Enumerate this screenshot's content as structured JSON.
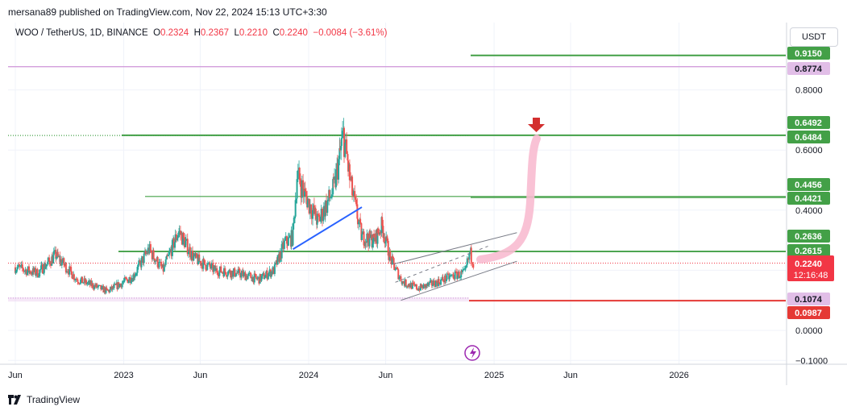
{
  "header": {
    "publisher": "mersana89 published on TradingView.com, Nov 22, 2024 15:13 UTC+3:30"
  },
  "legend": {
    "symbol": "WOO / TetherUS, 1D, BINANCE",
    "o_label": "O",
    "o": "0.2324",
    "h_label": "H",
    "h": "0.2367",
    "l_label": "L",
    "l": "0.2210",
    "c_label": "C",
    "c": "0.2240",
    "change": "−0.0084 (−3.61%)"
  },
  "currency_button": "USDT",
  "footer": {
    "brand": "TradingView"
  },
  "colors": {
    "up": "#26a69a",
    "down": "#ef5350",
    "green_line": "#43a047",
    "pink_line": "#ce93d8",
    "red_line": "#e53935",
    "blue_line": "#2962ff",
    "price_tag": "#f23645",
    "purple_icon": "#9c27b0"
  },
  "chart_data": {
    "type": "candlestick",
    "title": "WOO / TetherUS, 1D, BINANCE",
    "ylim": [
      -0.1,
      1.0
    ],
    "y_ticks": [
      "0.8000",
      "0.6000",
      "0.4000",
      "0.0000",
      "−0.1000"
    ],
    "x_ticks": [
      "Jun",
      "2023",
      "Jun",
      "2024",
      "Jun",
      "2025",
      "Jun",
      "2026"
    ],
    "price_series": [
      {
        "date": "2022-06-01",
        "close": 0.21
      },
      {
        "date": "2022-07-15",
        "close": 0.19
      },
      {
        "date": "2022-08-20",
        "close": 0.25
      },
      {
        "date": "2022-10-01",
        "close": 0.17
      },
      {
        "date": "2022-12-01",
        "close": 0.13
      },
      {
        "date": "2023-01-20",
        "close": 0.18
      },
      {
        "date": "2023-02-20",
        "close": 0.27
      },
      {
        "date": "2023-03-20",
        "close": 0.2
      },
      {
        "date": "2023-04-20",
        "close": 0.33
      },
      {
        "date": "2023-05-20",
        "close": 0.24
      },
      {
        "date": "2023-07-01",
        "close": 0.2
      },
      {
        "date": "2023-08-15",
        "close": 0.19
      },
      {
        "date": "2023-09-25",
        "close": 0.17
      },
      {
        "date": "2023-10-25",
        "close": 0.2
      },
      {
        "date": "2023-11-15",
        "close": 0.29
      },
      {
        "date": "2023-12-01",
        "close": 0.31
      },
      {
        "date": "2023-12-10",
        "close": 0.52
      },
      {
        "date": "2023-12-25",
        "close": 0.45
      },
      {
        "date": "2024-01-20",
        "close": 0.36
      },
      {
        "date": "2024-02-20",
        "close": 0.47
      },
      {
        "date": "2024-03-10",
        "close": 0.65
      },
      {
        "date": "2024-03-25",
        "close": 0.48
      },
      {
        "date": "2024-04-15",
        "close": 0.31
      },
      {
        "date": "2024-05-10",
        "close": 0.3
      },
      {
        "date": "2024-05-25",
        "close": 0.35
      },
      {
        "date": "2024-06-10",
        "close": 0.24
      },
      {
        "date": "2024-07-05",
        "close": 0.16
      },
      {
        "date": "2024-08-05",
        "close": 0.14
      },
      {
        "date": "2024-09-10",
        "close": 0.16
      },
      {
        "date": "2024-10-10",
        "close": 0.18
      },
      {
        "date": "2024-11-05",
        "close": 0.19
      },
      {
        "date": "2024-11-15",
        "close": 0.26
      },
      {
        "date": "2024-11-22",
        "close": 0.224
      }
    ],
    "horizontal_levels": [
      {
        "value": 0.915,
        "color": "#43a047"
      },
      {
        "value": 0.8774,
        "color": "#ce93d8"
      },
      {
        "value": 0.6492,
        "color": "#43a047"
      },
      {
        "value": 0.6484,
        "color": "#43a047"
      },
      {
        "value": 0.4456,
        "color": "#43a047"
      },
      {
        "value": 0.4421,
        "color": "#43a047"
      },
      {
        "value": 0.2636,
        "color": "#43a047"
      },
      {
        "value": 0.2615,
        "color": "#43a047"
      },
      {
        "value": 0.1074,
        "color": "#ce93d8"
      },
      {
        "value": 0.0987,
        "color": "#e53935"
      }
    ],
    "current_price": {
      "value": "0.2240",
      "countdown": "12:16:48"
    }
  },
  "price_tags": [
    {
      "text": "0.9150",
      "bg": "#43a047",
      "fg": "#ffffff"
    },
    {
      "text": "0.8774",
      "bg": "#e1bee7",
      "fg": "#131722"
    },
    {
      "text": "0.6492",
      "bg": "#43a047",
      "fg": "#ffffff"
    },
    {
      "text": "0.6484",
      "bg": "#43a047",
      "fg": "#ffffff"
    },
    {
      "text": "0.4456",
      "bg": "#43a047",
      "fg": "#ffffff"
    },
    {
      "text": "0.4421",
      "bg": "#43a047",
      "fg": "#ffffff"
    },
    {
      "text": "0.2636",
      "bg": "#43a047",
      "fg": "#ffffff"
    },
    {
      "text": "0.2615",
      "bg": "#43a047",
      "fg": "#ffffff"
    },
    {
      "text": "0.1074",
      "bg": "#e1bee7",
      "fg": "#131722"
    },
    {
      "text": "0.0987",
      "bg": "#e53935",
      "fg": "#ffffff"
    }
  ]
}
